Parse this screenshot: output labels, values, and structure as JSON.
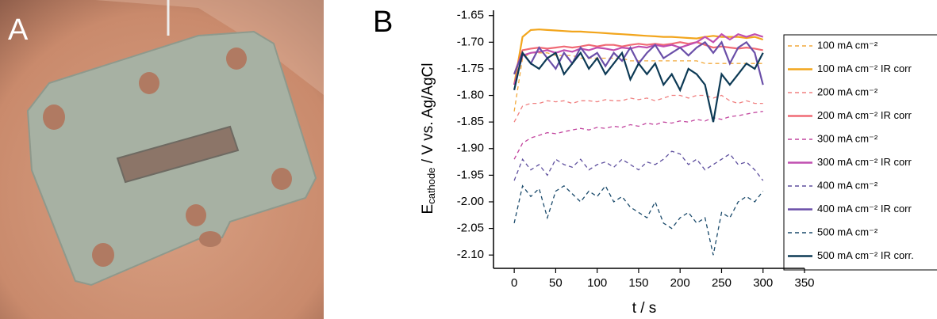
{
  "panel_labels": [
    "A",
    "B"
  ],
  "chart_data": {
    "type": "line",
    "ylabel": [
      "E",
      "cathode",
      " / V vs. Ag/AgCl"
    ],
    "xlabel": "t / s",
    "x": [
      0,
      10,
      20,
      30,
      40,
      50,
      60,
      70,
      80,
      90,
      100,
      110,
      120,
      130,
      140,
      150,
      160,
      170,
      180,
      190,
      200,
      210,
      220,
      230,
      240,
      250,
      260,
      270,
      280,
      290,
      300
    ],
    "xlim": [
      -25,
      350
    ],
    "xticks": [
      0,
      50,
      100,
      150,
      200,
      250,
      300,
      350
    ],
    "ylim": [
      -2.125,
      -1.64
    ],
    "yticks": [
      -1.65,
      {
        "value": -1.7,
        "label": "-1.70"
      },
      -1.75,
      {
        "value": -1.8,
        "label": "-1.80"
      },
      -1.85,
      {
        "value": -1.9,
        "label": "-1.90"
      },
      -1.95,
      {
        "value": -2.0,
        "label": "-2.00"
      },
      -2.05,
      {
        "value": -2.1,
        "label": "-2.10"
      }
    ],
    "legend": "right",
    "series": [
      {
        "name": "100 mA cm⁻²",
        "color": "#f2a93b",
        "linestyle": "dashed",
        "values": [
          -1.83,
          -1.73,
          -1.72,
          -1.72,
          -1.72,
          -1.725,
          -1.725,
          -1.725,
          -1.73,
          -1.73,
          -1.73,
          -1.73,
          -1.73,
          -1.73,
          -1.735,
          -1.735,
          -1.735,
          -1.735,
          -1.735,
          -1.735,
          -1.735,
          -1.735,
          -1.735,
          -1.74,
          -1.74,
          -1.74,
          -1.74,
          -1.74,
          -1.74,
          -1.74,
          -1.74
        ]
      },
      {
        "name": "100 mA cm⁻² IR corr",
        "color": "#f2a51c",
        "linestyle": "solid",
        "values": [
          -1.78,
          -1.69,
          -1.677,
          -1.676,
          -1.677,
          -1.678,
          -1.679,
          -1.68,
          -1.68,
          -1.681,
          -1.682,
          -1.683,
          -1.684,
          -1.685,
          -1.686,
          -1.687,
          -1.688,
          -1.689,
          -1.69,
          -1.69,
          -1.691,
          -1.692,
          -1.693,
          -1.69,
          -1.688,
          -1.69,
          -1.69,
          -1.69,
          -1.692,
          -1.69,
          -1.695
        ]
      },
      {
        "name": "200 mA cm⁻²",
        "color": "#f08080",
        "linestyle": "dashed",
        "values": [
          -1.85,
          -1.82,
          -1.815,
          -1.815,
          -1.81,
          -1.812,
          -1.81,
          -1.815,
          -1.81,
          -1.81,
          -1.812,
          -1.808,
          -1.81,
          -1.81,
          -1.805,
          -1.808,
          -1.805,
          -1.81,
          -1.805,
          -1.8,
          -1.8,
          -1.805,
          -1.8,
          -1.8,
          -1.805,
          -1.8,
          -1.81,
          -1.815,
          -1.81,
          -1.815,
          -1.815
        ]
      },
      {
        "name": "200 mA cm⁻² IR corr",
        "color": "#f06a75",
        "linestyle": "solid",
        "values": [
          -1.76,
          -1.715,
          -1.712,
          -1.71,
          -1.712,
          -1.71,
          -1.708,
          -1.71,
          -1.708,
          -1.705,
          -1.708,
          -1.705,
          -1.705,
          -1.708,
          -1.705,
          -1.703,
          -1.705,
          -1.703,
          -1.705,
          -1.703,
          -1.7,
          -1.703,
          -1.7,
          -1.705,
          -1.71,
          -1.708,
          -1.71,
          -1.712,
          -1.71,
          -1.712,
          -1.715
        ]
      },
      {
        "name": "300 mA cm⁻²",
        "color": "#c2459e",
        "linestyle": "dashed",
        "values": [
          -1.92,
          -1.89,
          -1.88,
          -1.875,
          -1.87,
          -1.872,
          -1.868,
          -1.865,
          -1.862,
          -1.865,
          -1.86,
          -1.862,
          -1.858,
          -1.86,
          -1.855,
          -1.858,
          -1.852,
          -1.855,
          -1.85,
          -1.852,
          -1.848,
          -1.85,
          -1.845,
          -1.848,
          -1.842,
          -1.845,
          -1.84,
          -1.838,
          -1.835,
          -1.832,
          -1.83
        ]
      },
      {
        "name": "300 mA cm⁻² IR corr",
        "color": "#c04fb0",
        "linestyle": "solid",
        "values": [
          -1.78,
          -1.725,
          -1.72,
          -1.718,
          -1.715,
          -1.72,
          -1.715,
          -1.718,
          -1.712,
          -1.715,
          -1.71,
          -1.712,
          -1.715,
          -1.71,
          -1.712,
          -1.708,
          -1.71,
          -1.705,
          -1.708,
          -1.705,
          -1.71,
          -1.705,
          -1.7,
          -1.69,
          -1.7,
          -1.685,
          -1.695,
          -1.685,
          -1.69,
          -1.685,
          -1.69
        ]
      },
      {
        "name": "400 mA cm⁻²",
        "color": "#5e4f9e",
        "linestyle": "dashed",
        "values": [
          -1.96,
          -1.92,
          -1.94,
          -1.93,
          -1.95,
          -1.92,
          -1.93,
          -1.935,
          -1.92,
          -1.94,
          -1.93,
          -1.925,
          -1.935,
          -1.92,
          -1.93,
          -1.94,
          -1.925,
          -1.93,
          -1.92,
          -1.905,
          -1.91,
          -1.93,
          -1.92,
          -1.94,
          -1.93,
          -1.92,
          -1.91,
          -1.93,
          -1.925,
          -1.94,
          -1.96
        ]
      },
      {
        "name": "400 mA cm⁻² IR corr",
        "color": "#6a4fa8",
        "linestyle": "solid",
        "values": [
          -1.76,
          -1.72,
          -1.74,
          -1.71,
          -1.73,
          -1.75,
          -1.72,
          -1.74,
          -1.71,
          -1.73,
          -1.72,
          -1.745,
          -1.72,
          -1.735,
          -1.71,
          -1.74,
          -1.72,
          -1.705,
          -1.73,
          -1.72,
          -1.71,
          -1.725,
          -1.71,
          -1.7,
          -1.72,
          -1.7,
          -1.74,
          -1.71,
          -1.7,
          -1.72,
          -1.78
        ]
      },
      {
        "name": "500 mA cm⁻²",
        "color": "#1a4a6b",
        "linestyle": "dashed",
        "values": [
          -2.04,
          -1.97,
          -1.99,
          -1.975,
          -2.03,
          -1.98,
          -1.97,
          -1.985,
          -2.0,
          -1.98,
          -1.99,
          -1.97,
          -2.0,
          -1.99,
          -2.01,
          -2.02,
          -2.03,
          -2.0,
          -2.04,
          -2.05,
          -2.03,
          -2.02,
          -2.04,
          -2.03,
          -2.1,
          -2.02,
          -2.03,
          -2.0,
          -1.99,
          -2.0,
          -1.98
        ]
      },
      {
        "name": "500 mA cm⁻² IR corr.",
        "color": "#0d3a55",
        "linestyle": "solid",
        "values": [
          -1.79,
          -1.72,
          -1.74,
          -1.75,
          -1.73,
          -1.72,
          -1.76,
          -1.74,
          -1.72,
          -1.75,
          -1.73,
          -1.76,
          -1.74,
          -1.72,
          -1.77,
          -1.74,
          -1.76,
          -1.74,
          -1.78,
          -1.76,
          -1.79,
          -1.75,
          -1.76,
          -1.78,
          -1.85,
          -1.76,
          -1.78,
          -1.76,
          -1.74,
          -1.75,
          -1.72
        ]
      }
    ]
  }
}
